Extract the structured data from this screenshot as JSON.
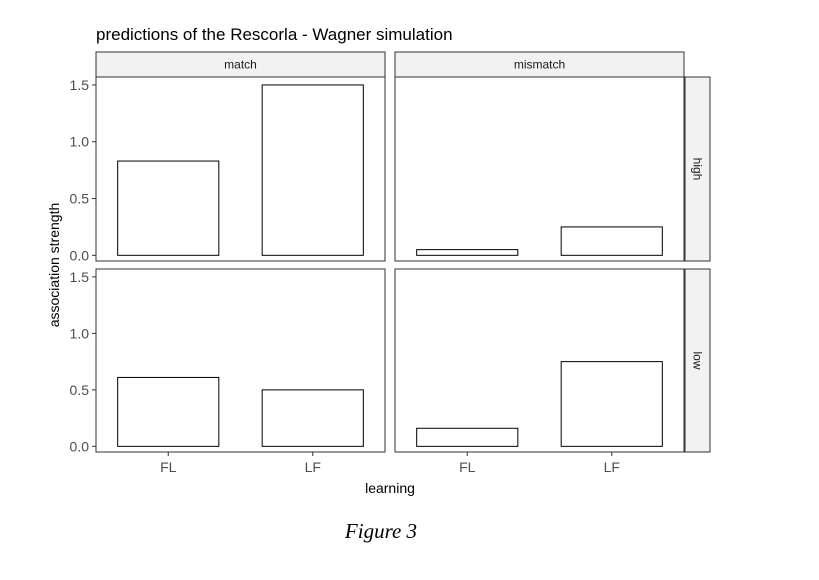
{
  "chart_data": {
    "type": "bar",
    "title": "predictions of the Rescorla - Wagner simulation",
    "xlabel": "learning",
    "ylabel": "association strength",
    "ylim": [
      -0.05,
      1.57
    ],
    "yticks": [
      0.0,
      0.5,
      1.0,
      1.5
    ],
    "ytick_labels": [
      "0.0",
      "0.5",
      "1.0",
      "1.5"
    ],
    "categories": [
      "FL",
      "LF"
    ],
    "col_facets": [
      "match",
      "mismatch"
    ],
    "row_facets": [
      "high",
      "low"
    ],
    "grid": false,
    "panels": [
      {
        "col": "match",
        "row": "high",
        "values": [
          0.83,
          1.5
        ]
      },
      {
        "col": "mismatch",
        "row": "high",
        "values": [
          0.05,
          0.25
        ]
      },
      {
        "col": "match",
        "row": "low",
        "values": [
          0.61,
          0.5
        ]
      },
      {
        "col": "mismatch",
        "row": "low",
        "values": [
          0.16,
          0.75
        ]
      }
    ],
    "colors": {
      "bar_fill": "#ffffff",
      "bar_stroke": "#000000",
      "strip_fill": "#f2f2f2"
    }
  },
  "caption": "Figure 3"
}
